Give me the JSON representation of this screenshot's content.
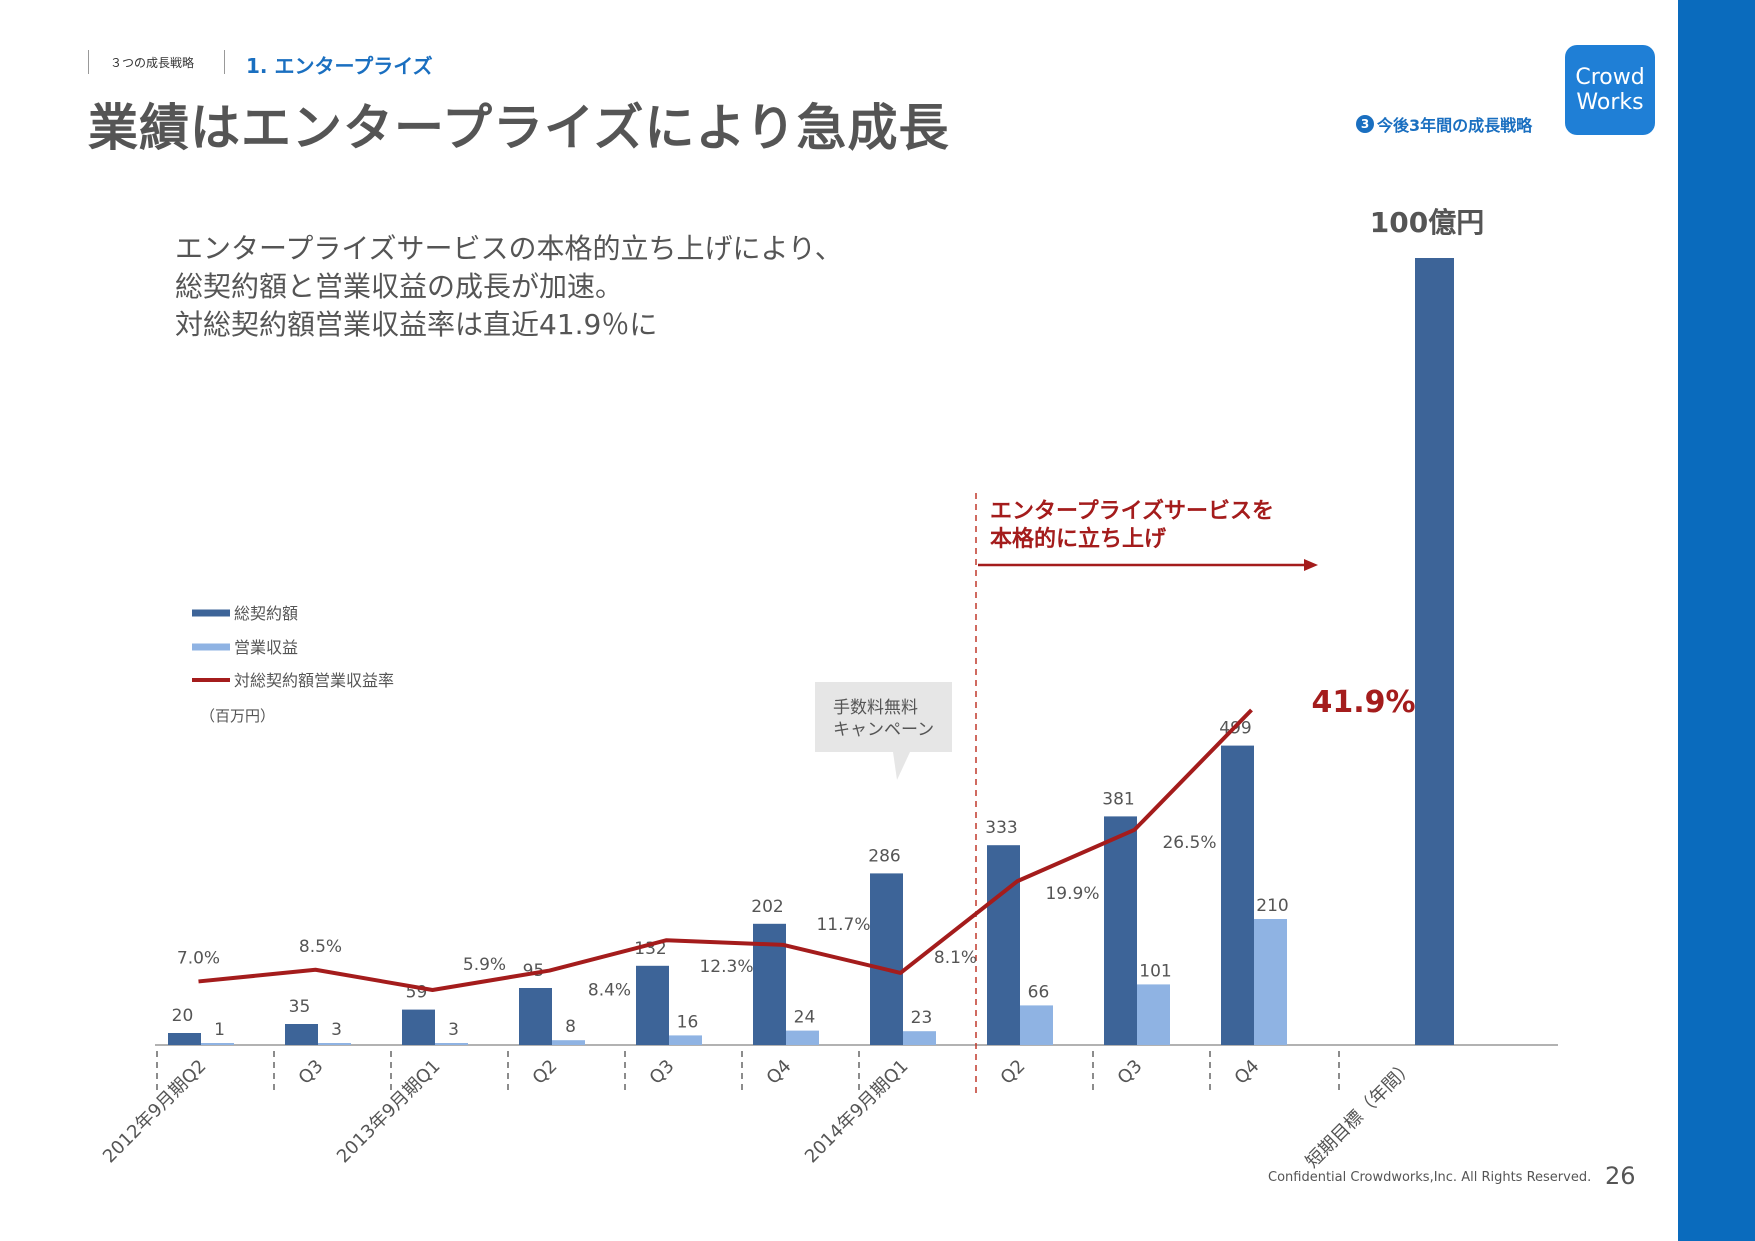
{
  "header": {
    "breadcrumb_section": "３つの成長戦略",
    "breadcrumb_current": "1. エンタープライズ",
    "title": "業績はエンタープライズにより急成長",
    "strategy_badge_number": "3",
    "strategy_badge_text": "今後3年間の成長戦略"
  },
  "logo": {
    "line1": "Crowd",
    "line2": "Works"
  },
  "lead_text": [
    "エンタープライズサービスの本格的立ち上げにより、",
    "総契約額と営業収益の成長が加速。",
    "対総契約額営業収益率は直近41.9％に"
  ],
  "footer": {
    "copyright": "Confidential Crowdworks,Inc. All Rights Reserved.",
    "page": "26"
  },
  "chart_data": {
    "type": "bar",
    "categories": [
      "2012年9月期Q2",
      "Q3",
      "2013年9月期Q1",
      "Q2",
      "Q3",
      "Q4",
      "2014年9月期Q1",
      "Q2",
      "Q3",
      "Q4",
      "短期目標（年間）"
    ],
    "unit_label": "（百万円）",
    "series": [
      {
        "name": "総契約額",
        "type": "bar",
        "color": "#3d6498",
        "values": [
          20,
          35,
          59,
          95,
          132,
          202,
          286,
          333,
          381,
          499,
          null
        ]
      },
      {
        "name": "営業収益",
        "type": "bar",
        "color": "#8fb3e3",
        "values": [
          1,
          3,
          3,
          8,
          16,
          24,
          23,
          66,
          101,
          210,
          null
        ]
      },
      {
        "name": "対総契約額営業収益率",
        "type": "line",
        "color": "#a41c1c",
        "values": [
          7.0,
          8.5,
          5.9,
          8.4,
          12.3,
          11.7,
          8.1,
          19.9,
          26.5,
          41.9,
          null
        ]
      }
    ],
    "ratio_labels": [
      "7.0%",
      "8.5%",
      "5.9%",
      "8.4%",
      "12.3%",
      "11.7%",
      "8.1%",
      "19.9%",
      "26.5%",
      "41.9%"
    ],
    "target": {
      "label": "100億円",
      "value": 10000
    },
    "annotations": {
      "campaign": [
        "手数料無料",
        "キャンペーン"
      ],
      "enterprise": [
        "エンタープライズサービスを",
        "本格的に立ち上げ"
      ]
    },
    "legend_position": "left",
    "grid": false
  }
}
